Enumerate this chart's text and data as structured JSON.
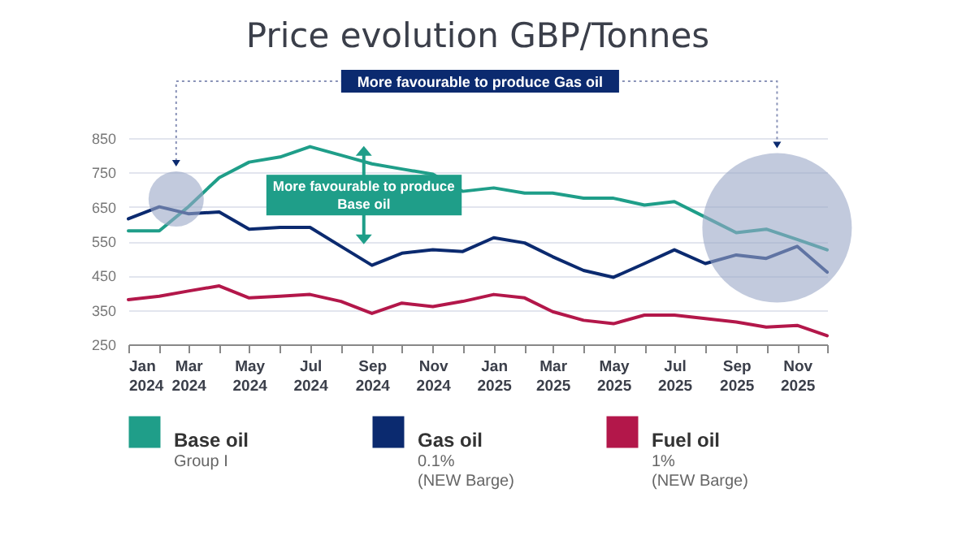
{
  "chart_data": {
    "type": "line",
    "title": "Price evolution GBP/Tonnes",
    "x": [
      "2024-01",
      "2024-02",
      "2024-03",
      "2024-04",
      "2024-05",
      "2024-06",
      "2024-07",
      "2024-08",
      "2024-09",
      "2024-10",
      "2024-11",
      "2024-12",
      "2025-01",
      "2025-02",
      "2025-03",
      "2025-04",
      "2025-05",
      "2025-06",
      "2025-07",
      "2025-08",
      "2025-09",
      "2025-10",
      "2025-11",
      "2025-12"
    ],
    "series": [
      {
        "name": "Base oil",
        "color": "#1f9e89",
        "values": [
          580,
          580,
          650,
          735,
          780,
          795,
          825,
          800,
          775,
          760,
          745,
          695,
          705,
          690,
          690,
          675,
          675,
          655,
          665,
          620,
          575,
          585,
          555,
          525
        ]
      },
      {
        "name": "Gas oil",
        "color": "#0b2a6f",
        "values": [
          615,
          650,
          630,
          635,
          585,
          590,
          590,
          535,
          480,
          515,
          525,
          520,
          560,
          545,
          505,
          465,
          445,
          485,
          525,
          485,
          510,
          500,
          535,
          460
        ]
      },
      {
        "name": "Fuel oil",
        "color": "#b3174a",
        "values": [
          380,
          390,
          405,
          420,
          385,
          390,
          395,
          375,
          340,
          370,
          360,
          375,
          395,
          385,
          345,
          320,
          310,
          335,
          335,
          325,
          315,
          300,
          305,
          275
        ]
      }
    ],
    "xlim": [
      "2024-01",
      "2025-12"
    ],
    "xticks": [
      {
        "value": "2024-01",
        "label": "Jan 2024"
      },
      {
        "value": "2024-02",
        "label": null
      },
      {
        "value": "2024-03",
        "label": "Mar 2024"
      },
      {
        "value": "2024-04",
        "label": null
      },
      {
        "value": "2024-05",
        "label": "May 2024"
      },
      {
        "value": "2024-06",
        "label": null
      },
      {
        "value": "2024-07",
        "label": "Jul 2024"
      },
      {
        "value": "2024-08",
        "label": null
      },
      {
        "value": "2024-09",
        "label": "Sep 2024"
      },
      {
        "value": "2024-10",
        "label": null
      },
      {
        "value": "2024-11",
        "label": "Nov 2024"
      },
      {
        "value": "2024-12",
        "label": null
      },
      {
        "value": "2025-01",
        "label": "Jan 2025"
      },
      {
        "value": "2025-02",
        "label": null
      },
      {
        "value": "2025-03",
        "label": "Mar 2025"
      },
      {
        "value": "2025-04",
        "label": null
      },
      {
        "value": "2025-05",
        "label": "May 2025"
      },
      {
        "value": "2025-06",
        "label": null
      },
      {
        "value": "2025-07",
        "label": "Jul 2025"
      },
      {
        "value": "2025-08",
        "label": null
      },
      {
        "value": "2025-09",
        "label": "Sep 2025"
      },
      {
        "value": "2025-10",
        "label": null
      },
      {
        "value": "2025-11",
        "label": "Nov 2025"
      },
      {
        "value": "2025-12",
        "label": null
      }
    ],
    "ylim": [
      250,
      850
    ],
    "yticks": [
      250,
      350,
      450,
      550,
      650,
      750,
      850
    ],
    "grid": "y",
    "legend": "bottom",
    "line_style": "solid",
    "annotations": [
      "More favourable to produce Gas oil",
      {
        "text": "More favourable to produce Base oil",
        "x": "2024-09",
        "y": 775
      },
      "Group I",
      "0.1% (NEW Barge)",
      "1% (NEW Barge)"
    ]
  }
}
